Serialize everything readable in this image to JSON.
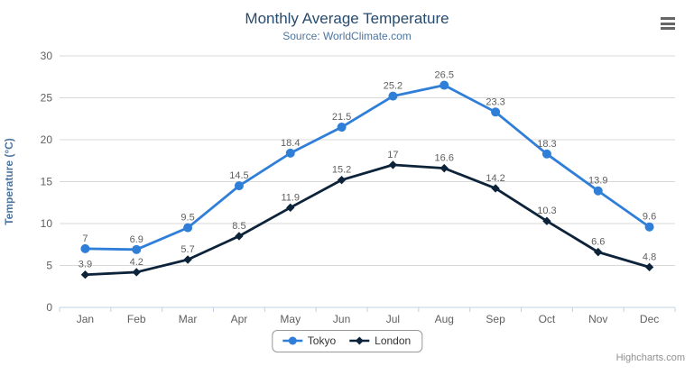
{
  "credits": "Highcharts.com",
  "colors": {
    "title": "#274b6d",
    "subtitle": "#4d759e",
    "axis_title": "#4d759e",
    "tick_label": "#606060",
    "data_label": "#606060",
    "gridline": "#d8d8d8",
    "axis_line": "#c0d0e0",
    "legend_border": "#999999",
    "legend_text": "#333333",
    "credits_text": "#909090",
    "menu_icon": "#666666"
  },
  "chart_data": {
    "type": "line",
    "title": "Monthly Average Temperature",
    "subtitle": "Source: WorldClimate.com",
    "categories": [
      "Jan",
      "Feb",
      "Mar",
      "Apr",
      "May",
      "Jun",
      "Jul",
      "Aug",
      "Sep",
      "Oct",
      "Nov",
      "Dec"
    ],
    "series": [
      {
        "name": "Tokyo",
        "marker": "circle",
        "color": "#2f7ed8",
        "values": [
          7,
          6.9,
          9.5,
          14.5,
          18.4,
          21.5,
          25.2,
          26.5,
          23.3,
          18.3,
          13.9,
          9.6
        ]
      },
      {
        "name": "London",
        "marker": "diamond",
        "color": "#0d233a",
        "values": [
          3.9,
          4.2,
          5.7,
          8.5,
          11.9,
          15.2,
          17,
          16.6,
          14.2,
          10.3,
          6.6,
          4.8
        ]
      }
    ],
    "xlabel": "",
    "ylabel": "Temperature (°C)",
    "ylim": [
      0,
      30
    ],
    "yticks": [
      0,
      5,
      10,
      15,
      20,
      25,
      30
    ],
    "grid": true,
    "legend_position": "bottom-center",
    "data_labels": true
  }
}
